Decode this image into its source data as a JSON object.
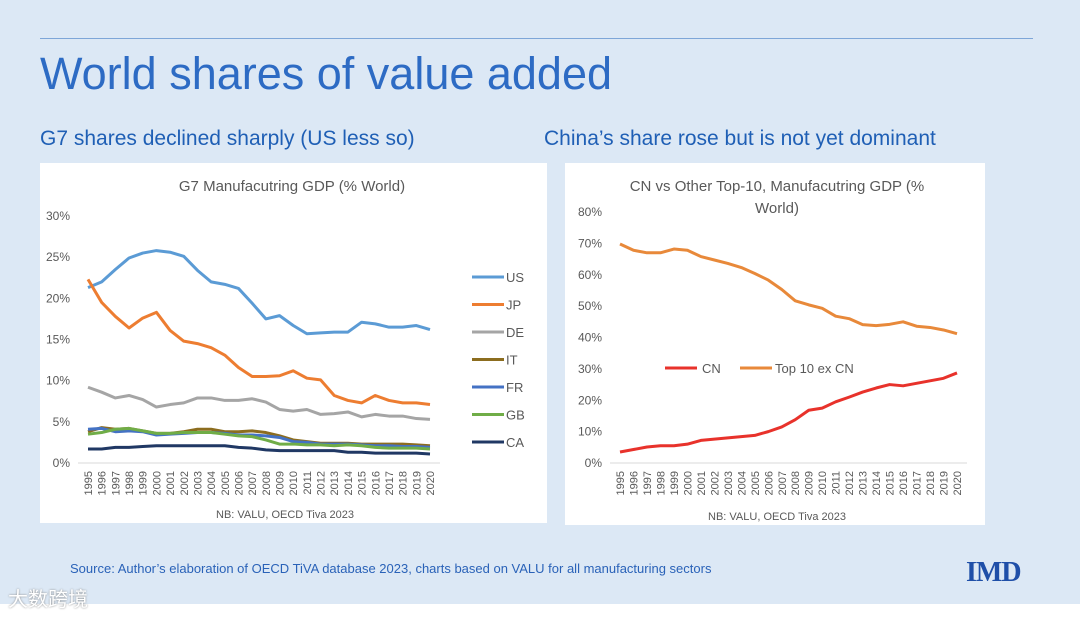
{
  "slide": {
    "title": "World shares of value added",
    "left_subtitle": "G7 shares declined sharply (US less so)",
    "right_subtitle": "China’s share rose but is not yet dominant",
    "source": "Source: Author’s elaboration of OECD TiVA database 2023, charts based on VALU for all manufacturing sectors",
    "logo": "IMD",
    "watermark": "大数跨境"
  },
  "chart_data": [
    {
      "type": "line",
      "title": "G7 Manufacutring GDP (% World)",
      "note": "NB: VALU, OECD Tiva 2023",
      "ylim": [
        0,
        30
      ],
      "yticks": [
        "0%",
        "5%",
        "10%",
        "15%",
        "20%",
        "25%",
        "30%"
      ],
      "ytick_values": [
        0,
        5,
        10,
        15,
        20,
        25,
        30
      ],
      "legend_position": "right",
      "x": [
        "1995",
        "1996",
        "1997",
        "1998",
        "1999",
        "2000",
        "2001",
        "2002",
        "2003",
        "2004",
        "2005",
        "2006",
        "2007",
        "2008",
        "2009",
        "2010",
        "2011",
        "2012",
        "2013",
        "2014",
        "2015",
        "2016",
        "2017",
        "2018",
        "2019",
        "2020"
      ],
      "series": [
        {
          "name": "US",
          "color": "#5b9bd5",
          "values": [
            21.3,
            22,
            23.5,
            24.9,
            25.5,
            25.8,
            25.6,
            25.1,
            23.4,
            22,
            21.7,
            21.2,
            19.4,
            17.5,
            17.9,
            16.7,
            15.7,
            15.8,
            15.9,
            15.9,
            17.1,
            16.9,
            16.5,
            16.5,
            16.7,
            16.2
          ]
        },
        {
          "name": "JP",
          "color": "#ed7d31",
          "values": [
            22.3,
            19.5,
            17.8,
            16.4,
            17.6,
            18.3,
            16.1,
            14.8,
            14.5,
            14.0,
            13.1,
            11.6,
            10.5,
            10.5,
            10.6,
            11.2,
            10.3,
            10.1,
            8.2,
            7.6,
            7.3,
            8.2,
            7.6,
            7.3,
            7.3,
            7.1
          ]
        },
        {
          "name": "DE",
          "color": "#a5a5a5",
          "values": [
            9.2,
            8.6,
            7.9,
            8.2,
            7.7,
            6.8,
            7.1,
            7.3,
            7.9,
            7.9,
            7.6,
            7.6,
            7.8,
            7.4,
            6.5,
            6.3,
            6.5,
            5.9,
            6.0,
            6.2,
            5.6,
            5.9,
            5.7,
            5.7,
            5.4,
            5.3
          ]
        },
        {
          "name": "IT",
          "color": "#8c6d1f",
          "values": [
            3.8,
            4.3,
            4.1,
            4.2,
            3.9,
            3.6,
            3.6,
            3.8,
            4.1,
            4.1,
            3.8,
            3.8,
            3.9,
            3.7,
            3.3,
            2.8,
            2.6,
            2.4,
            2.4,
            2.4,
            2.3,
            2.3,
            2.3,
            2.3,
            2.2,
            2.1
          ]
        },
        {
          "name": "FR",
          "color": "#4472c4",
          "values": [
            4.1,
            4.2,
            3.8,
            3.9,
            3.8,
            3.4,
            3.5,
            3.6,
            3.7,
            3.7,
            3.6,
            3.4,
            3.4,
            3.3,
            3.1,
            2.6,
            2.5,
            2.3,
            2.3,
            2.3,
            2.2,
            2.1,
            2.1,
            2.0,
            2.0,
            1.9
          ]
        },
        {
          "name": "GB",
          "color": "#70ad47",
          "values": [
            3.5,
            3.7,
            4.1,
            4.2,
            3.9,
            3.6,
            3.6,
            3.7,
            3.7,
            3.7,
            3.5,
            3.3,
            3.2,
            2.8,
            2.3,
            2.3,
            2.2,
            2.2,
            2.1,
            2.2,
            2.1,
            1.9,
            1.8,
            1.8,
            1.8,
            1.7
          ]
        },
        {
          "name": "CA",
          "color": "#203864",
          "values": [
            1.7,
            1.7,
            1.9,
            1.9,
            2.0,
            2.1,
            2.1,
            2.1,
            2.1,
            2.1,
            2.1,
            1.9,
            1.8,
            1.6,
            1.5,
            1.5,
            1.5,
            1.5,
            1.5,
            1.3,
            1.3,
            1.2,
            1.2,
            1.2,
            1.2,
            1.1
          ]
        }
      ]
    },
    {
      "type": "line",
      "title": "CN vs Other Top-10, Manufacutring GDP (%",
      "title_line2": "World)",
      "note": "NB: VALU, OECD Tiva 2023",
      "ylim": [
        0,
        80
      ],
      "yticks": [
        "0%",
        "10%",
        "20%",
        "30%",
        "40%",
        "50%",
        "60%",
        "70%",
        "80%"
      ],
      "ytick_values": [
        0,
        10,
        20,
        30,
        40,
        50,
        60,
        70,
        80
      ],
      "legend_position": "center",
      "x": [
        "1995",
        "1996",
        "1997",
        "1998",
        "1999",
        "2000",
        "2001",
        "2002",
        "2003",
        "2004",
        "2005",
        "2006",
        "2007",
        "2008",
        "2009",
        "2010",
        "2011",
        "2012",
        "2013",
        "2014",
        "2015",
        "2016",
        "2017",
        "2018",
        "2019",
        "2020"
      ],
      "series": [
        {
          "name": "CN",
          "color": "#e8322b",
          "values": [
            3.5,
            4.3,
            5.1,
            5.5,
            5.5,
            6.0,
            7.2,
            7.6,
            8.0,
            8.4,
            8.8,
            10.0,
            11.5,
            13.8,
            16.8,
            17.5,
            19.5,
            21.0,
            22.6,
            23.9,
            25.0,
            24.6,
            25.4,
            26.2,
            27.0,
            28.7
          ]
        },
        {
          "name": "Top 10 ex CN",
          "color": "#e8893a",
          "values": [
            69.8,
            67.8,
            67.0,
            67.0,
            68.2,
            67.8,
            65.8,
            64.7,
            63.6,
            62.3,
            60.4,
            58.3,
            55.3,
            51.7,
            50.4,
            49.3,
            46.8,
            46.0,
            44.1,
            43.8,
            44.2,
            45.0,
            43.6,
            43.2,
            42.4,
            41.2
          ]
        }
      ]
    }
  ]
}
